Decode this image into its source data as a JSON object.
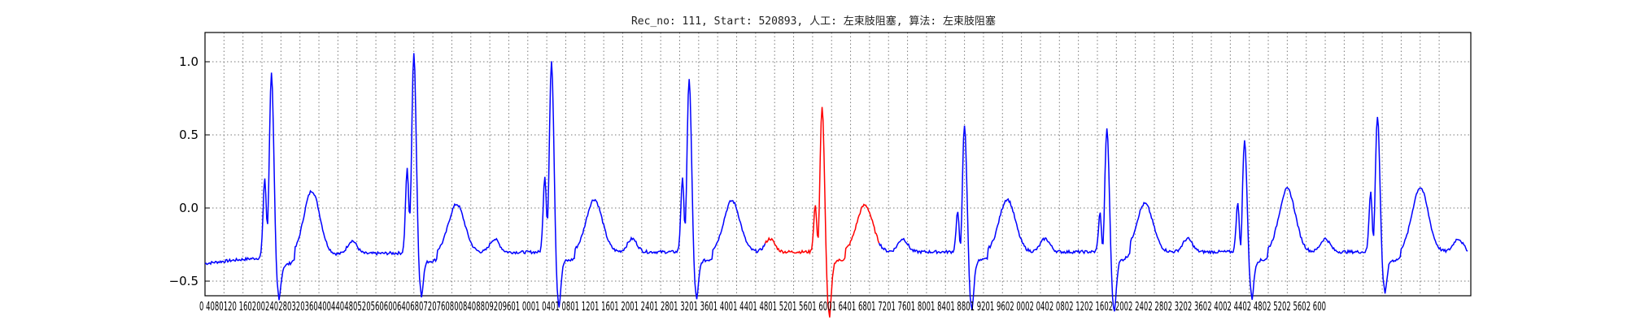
{
  "chart_data": {
    "type": "line",
    "title": "Rec_no: 111, Start: 520893, 人工: 左束肢阻塞, 算法: 左束肢阻塞",
    "xlabel": "",
    "ylabel": "",
    "xlim": [
      0,
      6000
    ],
    "ylim": [
      -0.6,
      1.2
    ],
    "grid": true,
    "y_ticks": [
      "−0.5",
      "0.0",
      "0.5",
      "1.0"
    ],
    "y_tick_values": [
      -0.5,
      0.0,
      0.5,
      1.0
    ],
    "x_tick_labels": "0 4080120 1602002402803203604004404805205606006406807207608008408809209601 0001 0401 0801 1201 1601 2001 2401 2801 3201 3601 4001 4401 4801 5201 5601 6001 6401 6801 7201 7601 8001 8401 8801 9201 9602 0002 0402 0802 1202 1602 2002 2402 2802 3202 3602 4002 4402 4802 5202 5602 600",
    "x_tick_values": [
      0,
      40,
      80,
      120,
      160,
      200,
      240,
      280,
      320,
      360,
      400,
      440,
      480,
      520,
      560,
      600,
      640,
      680,
      720,
      760,
      800,
      840,
      880,
      920,
      960,
      1000,
      1040,
      1080,
      1120,
      1160,
      1200,
      1240,
      1280,
      1320,
      1360,
      1400,
      1440,
      1480,
      1520,
      1560,
      1600,
      1640,
      1680,
      1720,
      1760,
      1800,
      1840,
      1880,
      1920,
      1960,
      2000,
      2040,
      2080,
      2120,
      2160,
      2200,
      2240,
      2280,
      2320,
      2360,
      2400,
      2440,
      2480,
      2520,
      2560,
      2600
    ],
    "x_range_samples": [
      0,
      2660
    ],
    "series_colors": {
      "normal": "#0000ff",
      "highlight": "#ff0000"
    },
    "beats": [
      {
        "r_x": 140,
        "r_amp": 0.97,
        "q_notch": 0.35,
        "s_min": -0.42,
        "t_x": 225,
        "t_amp": 0.14,
        "highlight": false
      },
      {
        "r_x": 440,
        "r_amp": 1.07,
        "q_notch": 0.38,
        "s_min": -0.42,
        "t_x": 530,
        "t_amp": 0.03,
        "highlight": false
      },
      {
        "r_x": 730,
        "r_amp": 1.01,
        "q_notch": 0.33,
        "s_min": -0.5,
        "t_x": 820,
        "t_amp": 0.06,
        "highlight": false
      },
      {
        "r_x": 1020,
        "r_amp": 0.89,
        "q_notch": 0.31,
        "s_min": -0.45,
        "t_x": 1110,
        "t_amp": 0.05,
        "highlight": false
      },
      {
        "r_x": 1300,
        "r_amp": 0.7,
        "q_notch": 0.13,
        "s_min": -0.58,
        "t_x": 1390,
        "t_amp": 0.02,
        "highlight": true
      },
      {
        "r_x": 1600,
        "r_amp": 0.57,
        "q_notch": 0.09,
        "s_min": -0.53,
        "t_x": 1690,
        "t_amp": 0.06,
        "highlight": false
      },
      {
        "r_x": 1900,
        "r_amp": 0.55,
        "q_notch": 0.08,
        "s_min": -0.54,
        "t_x": 1980,
        "t_amp": 0.03,
        "highlight": false
      },
      {
        "r_x": 2190,
        "r_amp": 0.47,
        "q_notch": 0.16,
        "s_min": -0.44,
        "t_x": 2280,
        "t_amp": 0.13,
        "highlight": false
      },
      {
        "r_x": 2470,
        "r_amp": 0.64,
        "q_notch": 0.23,
        "s_min": -0.41,
        "t_x": 2560,
        "t_amp": 0.14,
        "highlight": false
      }
    ],
    "highlight_range": [
      1180,
      1420
    ],
    "baseline": -0.3
  }
}
